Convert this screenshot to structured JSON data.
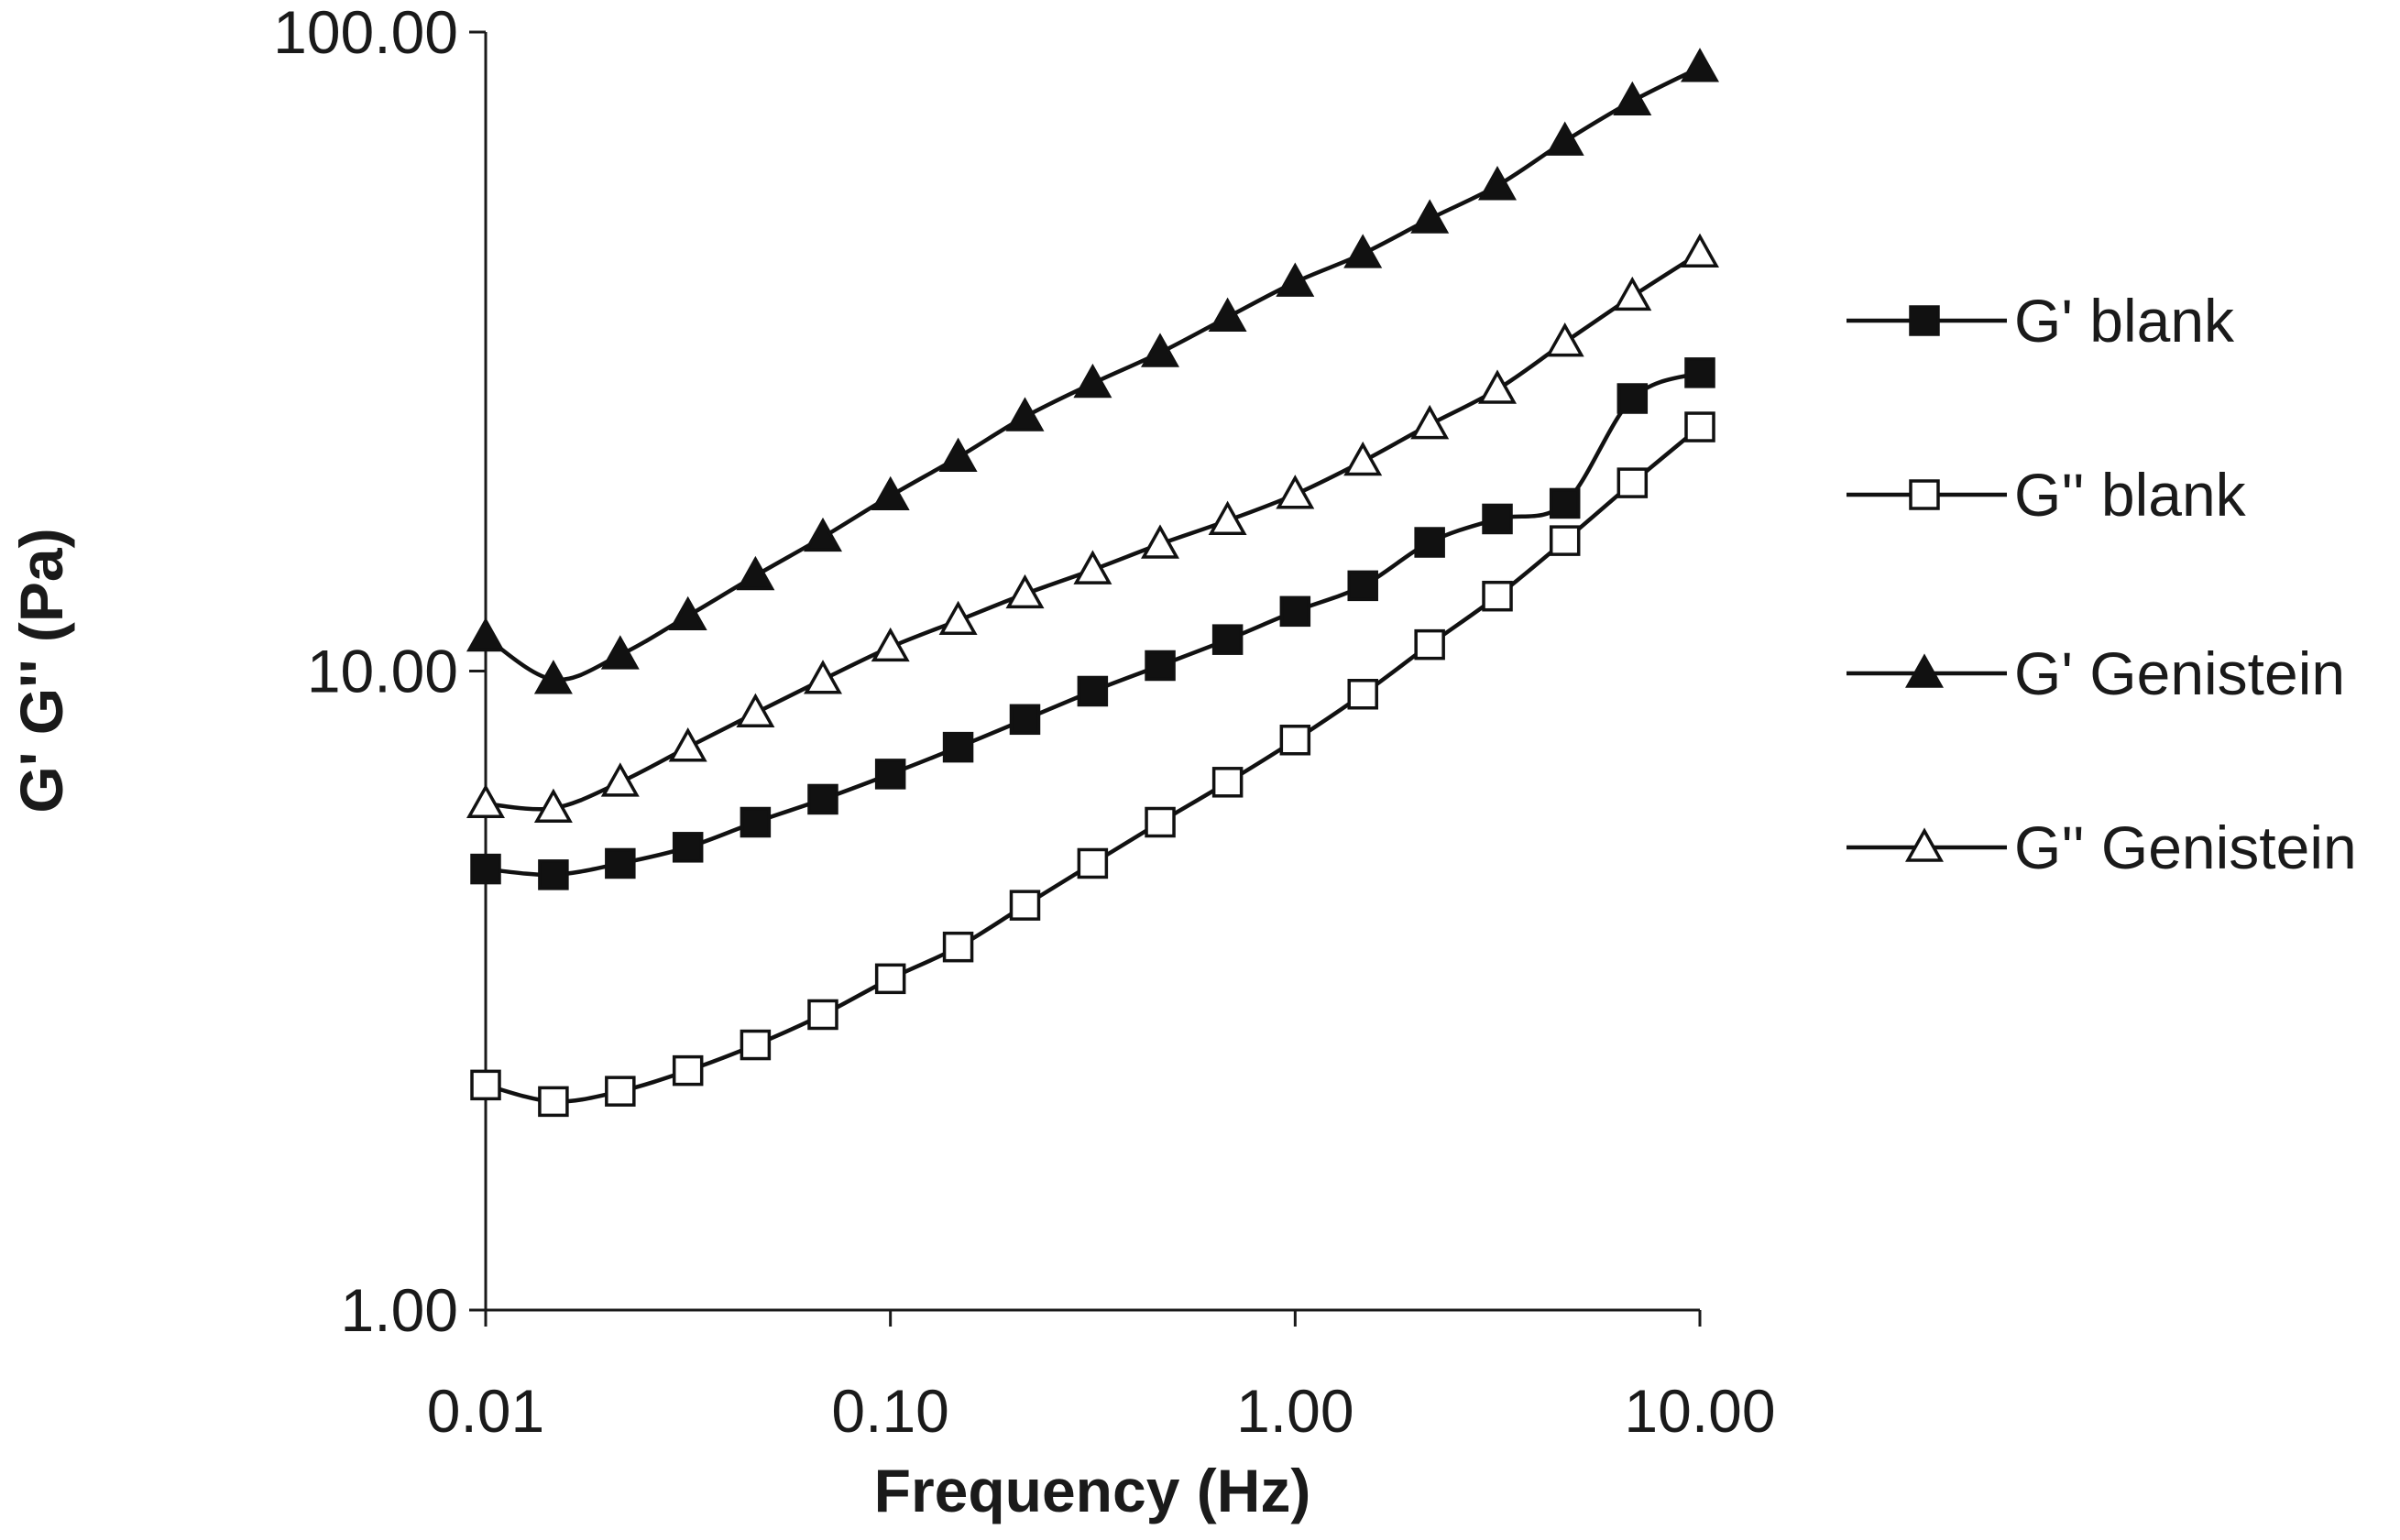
{
  "chart_data": {
    "type": "line",
    "title": "",
    "xlabel": "Frequency (Hz)",
    "ylabel": "G' G'' (Pa)",
    "xscale": "log",
    "yscale": "log",
    "xlim": [
      0.01,
      10
    ],
    "ylim": [
      1,
      100
    ],
    "grid": false,
    "legend_position": "right",
    "x_ticks": [
      0.01,
      0.1,
      1,
      10
    ],
    "x_tick_labels": [
      "0.01",
      "0.10",
      "1.00",
      "10.00"
    ],
    "y_ticks": [
      1,
      10,
      100
    ],
    "y_tick_labels": [
      "1.00",
      "10.00",
      "100.00"
    ],
    "x": [
      0.01,
      0.0147,
      0.0215,
      0.0316,
      0.0464,
      0.0681,
      0.1,
      0.147,
      0.215,
      0.316,
      0.464,
      0.681,
      1.0,
      1.47,
      2.15,
      3.16,
      4.64,
      6.81,
      10.0
    ],
    "series": [
      {
        "name": "G' blank",
        "marker": "filled-square",
        "values": [
          4.9,
          4.8,
          5.0,
          5.3,
          5.8,
          6.3,
          6.9,
          7.6,
          8.4,
          9.3,
          10.2,
          11.2,
          12.4,
          13.6,
          15.9,
          17.3,
          18.3,
          26.7,
          29.3
        ]
      },
      {
        "name": "G'' blank",
        "marker": "open-square",
        "values": [
          2.25,
          2.12,
          2.2,
          2.37,
          2.6,
          2.9,
          3.3,
          3.7,
          4.3,
          5.0,
          5.8,
          6.7,
          7.8,
          9.2,
          11.0,
          13.1,
          16.0,
          19.7,
          24.1
        ]
      },
      {
        "name": "G' Genistein",
        "marker": "filled-triangle",
        "values": [
          11.3,
          9.7,
          10.6,
          12.2,
          14.1,
          16.2,
          18.8,
          21.6,
          25.0,
          28.2,
          31.5,
          35.8,
          40.6,
          45.0,
          51.0,
          57.5,
          67.5,
          78.0,
          88.0
        ]
      },
      {
        "name": "G'' Genistein",
        "marker": "open-triangle",
        "values": [
          6.2,
          6.1,
          6.7,
          7.6,
          8.6,
          9.7,
          10.9,
          12.0,
          13.2,
          14.4,
          15.8,
          17.2,
          18.9,
          21.3,
          24.3,
          27.6,
          32.7,
          38.6,
          45.1
        ]
      }
    ]
  }
}
